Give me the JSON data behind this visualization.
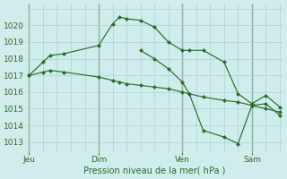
{
  "background_color": "#d0ecec",
  "grid_color": "#a8d4d4",
  "line_color": "#2a6e2a",
  "vline_color": "#4a7a4a",
  "tick_color": "#2a6e2a",
  "title": "Pression niveau de la mer( hPa )",
  "ylim": [
    1012.4,
    1021.3
  ],
  "yticks": [
    1013,
    1014,
    1015,
    1016,
    1017,
    1018,
    1019,
    1020
  ],
  "xlim": [
    -0.5,
    36.5
  ],
  "day_positions": [
    0,
    10,
    22,
    32
  ],
  "day_labels": [
    "Jeu",
    "Dim",
    "Ven",
    "Sam"
  ],
  "series": [
    {
      "x": [
        0,
        2,
        3,
        5,
        10,
        12,
        13,
        14,
        16,
        18,
        20,
        22,
        23,
        25,
        28,
        30,
        32,
        34,
        36
      ],
      "y": [
        1017.0,
        1017.8,
        1018.2,
        1018.3,
        1018.8,
        1020.1,
        1020.5,
        1020.4,
        1020.3,
        1019.9,
        1019.0,
        1018.5,
        1018.5,
        1018.5,
        1017.8,
        1015.9,
        1015.3,
        1015.8,
        1015.1
      ]
    },
    {
      "x": [
        0,
        2,
        3,
        5,
        10,
        12,
        13,
        14,
        16,
        18,
        20,
        22,
        23,
        25,
        28,
        30,
        32,
        34,
        36
      ],
      "y": [
        1017.0,
        1017.2,
        1017.3,
        1017.2,
        1016.9,
        1016.7,
        1016.6,
        1016.5,
        1016.4,
        1016.3,
        1016.2,
        1016.0,
        1015.9,
        1015.7,
        1015.5,
        1015.4,
        1015.2,
        1015.0,
        1014.8
      ]
    },
    {
      "x": [
        16,
        18,
        20,
        22,
        23,
        25,
        28,
        30,
        32,
        34,
        36
      ],
      "y": [
        1018.5,
        1018.0,
        1017.4,
        1016.6,
        1015.9,
        1013.7,
        1013.3,
        1012.9,
        1015.2,
        1015.3,
        1014.6
      ]
    }
  ]
}
